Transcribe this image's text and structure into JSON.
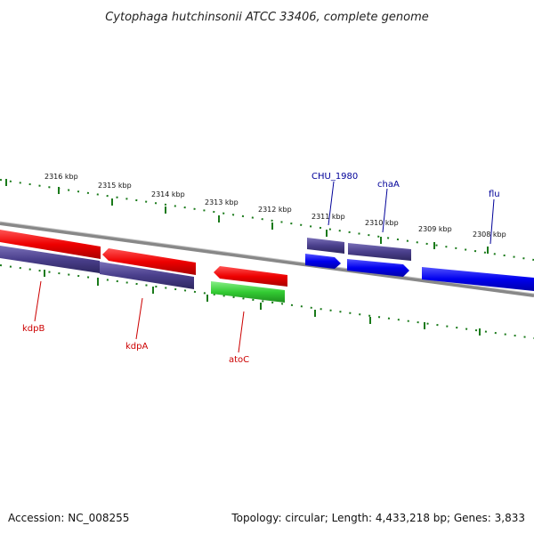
{
  "title": "Cytophaga hutchinsonii ATCC 33406, complete genome",
  "footer": {
    "accession": "Accession: NC_008255",
    "topology": "Topology: circular; Length: 4,433,218 bp; Genes: 3,833"
  },
  "ticks": [
    "2316 kbp",
    "2315 kbp",
    "2314 kbp",
    "2313 kbp",
    "2312 kbp",
    "2311 kbp",
    "2310 kbp",
    "2309 kbp",
    "2308 kbp"
  ],
  "gene_labels": {
    "top": [
      "CHU_1980",
      "chaA",
      "flu"
    ],
    "bottom": [
      "kdpB",
      "kdpA",
      "atoC"
    ]
  },
  "colors": {
    "red": "#ee0000",
    "navy": "#4a3f8c",
    "blue": "#0000ee",
    "green": "#33cc33",
    "tick_green": "#1a7a1a",
    "backbone": "#888888",
    "label_blue": "#000099",
    "label_red": "#cc0000"
  }
}
